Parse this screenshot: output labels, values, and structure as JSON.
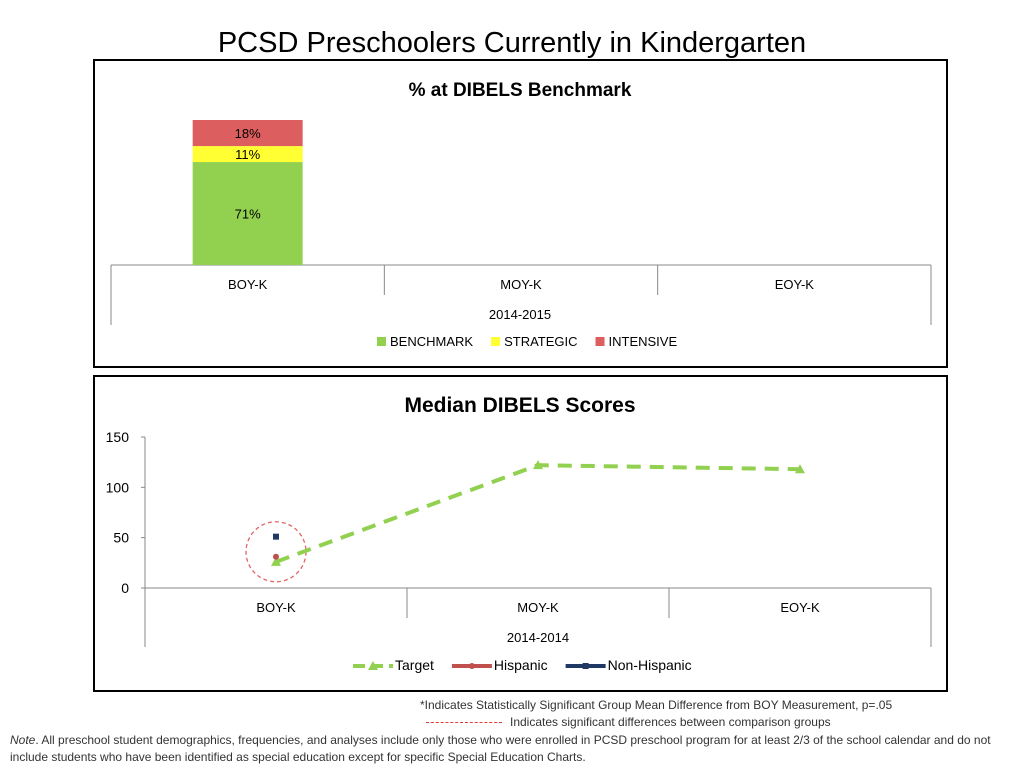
{
  "page_title": "PCSD Preschoolers Currently in Kindergarten",
  "chart_data": [
    {
      "type": "bar",
      "stacked": true,
      "title": "% at DIBELS Benchmark",
      "categories": [
        "BOY-K",
        "MOY-K",
        "EOY-K"
      ],
      "group_label": "2014-2015",
      "series": [
        {
          "name": "BENCHMARK",
          "color": "#92d050",
          "values": [
            71,
            null,
            null
          ],
          "labels": [
            "71%",
            "",
            ""
          ]
        },
        {
          "name": "STRATEGIC",
          "color": "#ffff33",
          "values": [
            11,
            null,
            null
          ],
          "labels": [
            "11%",
            "",
            ""
          ]
        },
        {
          "name": "INTENSIVE",
          "color": "#dd5e5e",
          "values": [
            18,
            null,
            null
          ],
          "labels": [
            "18%",
            "",
            ""
          ]
        }
      ],
      "ylim": [
        0,
        100
      ],
      "legend": "bottom"
    },
    {
      "type": "line",
      "title": "Median DIBELS Scores",
      "categories": [
        "BOY-K",
        "MOY-K",
        "EOY-K"
      ],
      "group_label": "2014-2014",
      "yticks": [
        "0",
        "50",
        "100",
        "150"
      ],
      "ylim": [
        0,
        150
      ],
      "series": [
        {
          "name": "Target",
          "color": "#92d050",
          "style": "dashed",
          "marker": "triangle",
          "values": [
            26,
            122,
            118
          ]
        },
        {
          "name": "Hispanic",
          "color": "#c0504d",
          "style": "solid",
          "marker": "circle",
          "values": [
            31,
            null,
            null
          ]
        },
        {
          "name": "Non-Hispanic",
          "color": "#1f3864",
          "style": "solid",
          "marker": "square",
          "values": [
            51,
            null,
            null
          ]
        }
      ],
      "highlight": {
        "category": "BOY-K",
        "style": "dashed-circle",
        "color": "#e06666"
      },
      "legend": "bottom"
    }
  ],
  "footnotes": {
    "significance": "*Indicates Statistically Significant Group Mean Difference from BOY Measurement, p=.05",
    "group_difference": "Indicates significant differences between comparison groups",
    "note_label": "Note",
    "note_text": ". All preschool student demographics, frequencies, and analyses include only those who were enrolled in PCSD preschool program for at least 2/3 of the school calendar and do not include students who have been identified as special education except for specific Special Education Charts."
  }
}
